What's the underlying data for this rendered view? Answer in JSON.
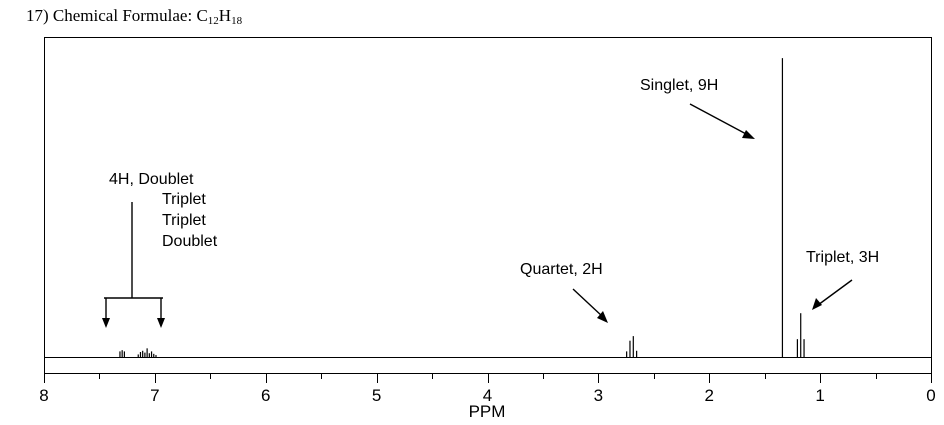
{
  "problem": {
    "number": "17)",
    "label": "Chemical Formulae:",
    "formula_parts": [
      "C",
      "12",
      "H",
      "18"
    ]
  },
  "chart_data": {
    "type": "line",
    "subtype": "1H NMR spectrum",
    "xlabel": "PPM",
    "ylabel": "",
    "xlim": [
      8,
      0
    ],
    "x_reversed": true,
    "grid": false,
    "ticks": [
      "8",
      "7",
      "6",
      "5",
      "4",
      "3",
      "2",
      "1",
      "0"
    ],
    "peaks": [
      {
        "shift": 7.3,
        "lines": [
          {
            "x": 7.315,
            "h": 0.02
          },
          {
            "x": 7.295,
            "h": 0.024
          },
          {
            "x": 7.275,
            "h": 0.02
          }
        ]
      },
      {
        "shift": 7.08,
        "lines": [
          {
            "x": 7.15,
            "h": 0.01
          },
          {
            "x": 7.13,
            "h": 0.018
          },
          {
            "x": 7.11,
            "h": 0.022
          },
          {
            "x": 7.09,
            "h": 0.016
          },
          {
            "x": 7.07,
            "h": 0.03
          },
          {
            "x": 7.05,
            "h": 0.014
          },
          {
            "x": 7.03,
            "h": 0.02
          },
          {
            "x": 7.01,
            "h": 0.012
          },
          {
            "x": 6.99,
            "h": 0.008
          }
        ]
      },
      {
        "shift": 2.7,
        "lines": [
          {
            "x": 2.745,
            "h": 0.02
          },
          {
            "x": 2.715,
            "h": 0.055
          },
          {
            "x": 2.685,
            "h": 0.07
          },
          {
            "x": 2.655,
            "h": 0.022
          }
        ]
      },
      {
        "shift": 1.34,
        "lines": [
          {
            "x": 1.34,
            "h": 0.98
          }
        ]
      },
      {
        "shift": 1.17,
        "lines": [
          {
            "x": 1.205,
            "h": 0.06
          },
          {
            "x": 1.175,
            "h": 0.145
          },
          {
            "x": 1.145,
            "h": 0.06
          }
        ]
      }
    ],
    "annotations": [
      {
        "lines": [
          "Singlet, 9H"
        ]
      },
      {
        "lines": [
          "Triplet, 3H"
        ]
      },
      {
        "lines": [
          "Quartet, 2H"
        ]
      },
      {
        "lines": [
          "4H, Doublet",
          "Triplet",
          "Triplet",
          "Doublet"
        ]
      }
    ]
  }
}
